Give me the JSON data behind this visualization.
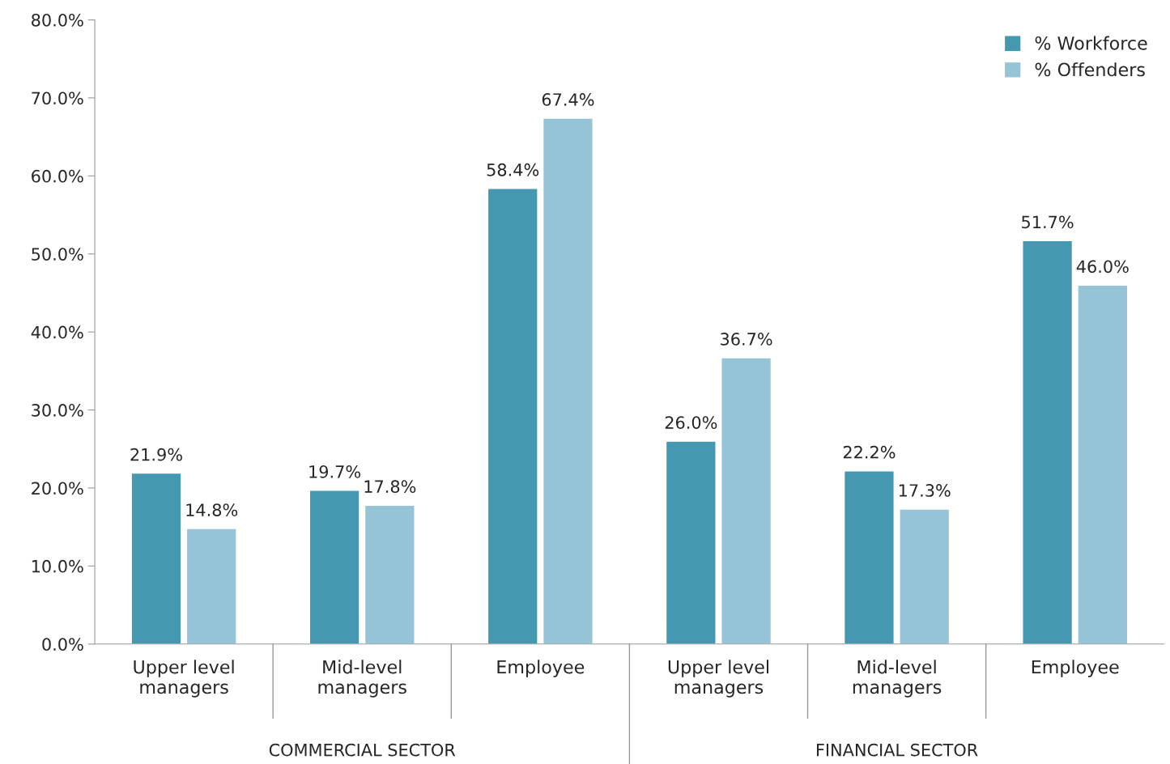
{
  "chart_data": {
    "type": "bar",
    "categories": [
      "Upper level\nmanagers",
      "Mid-level\nmanagers",
      "Employee",
      "Upper level\nmanagers",
      "Mid-level\nmanagers",
      "Employee"
    ],
    "series": [
      {
        "name": "% Workforce",
        "color": "#4499b0",
        "values": [
          21.9,
          19.7,
          58.4,
          26.0,
          22.2,
          51.7
        ],
        "value_labels": [
          "21.9%",
          "19.7%",
          "58.4%",
          "26.0%",
          "22.2%",
          "51.7%"
        ]
      },
      {
        "name": "% Offenders",
        "color": "#95c4d6",
        "values": [
          14.8,
          17.8,
          67.4,
          36.7,
          17.3,
          46.0
        ],
        "value_labels": [
          "14.8%",
          "17.8%",
          "67.4%",
          "36.7%",
          "17.3%",
          "46.0%"
        ]
      }
    ],
    "annotations": [
      "COMMERCIAL SECTOR",
      "FINANCIAL SECTOR"
    ],
    "ylim": [
      0,
      80
    ],
    "yticks": [
      {
        "value": 0,
        "label": "0.0%"
      },
      {
        "value": 10,
        "label": "10.0%"
      },
      {
        "value": 20,
        "label": "20.0%"
      },
      {
        "value": 30,
        "label": "30.0%"
      },
      {
        "value": 40,
        "label": "40.0%"
      },
      {
        "value": 50,
        "label": "50.0%"
      },
      {
        "value": 60,
        "label": "60.0%"
      },
      {
        "value": 70,
        "label": "70.0%"
      },
      {
        "value": 80,
        "label": "80.0%"
      }
    ],
    "grid": false,
    "legend": "top right"
  }
}
